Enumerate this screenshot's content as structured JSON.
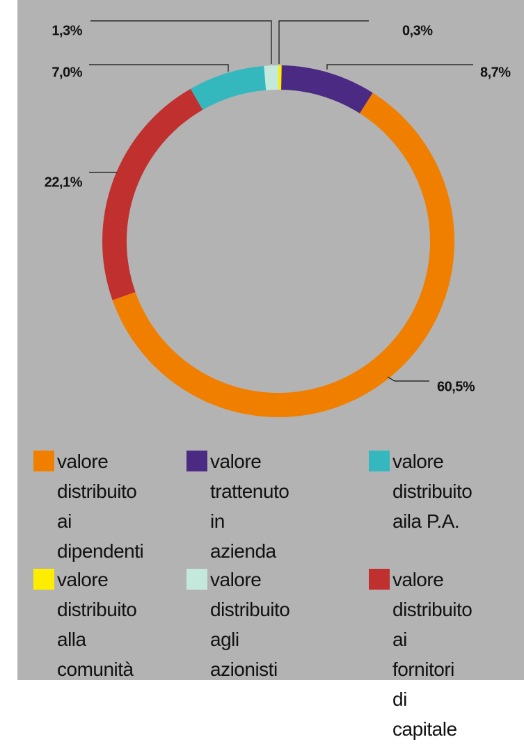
{
  "chart_data": {
    "type": "donut",
    "categories": [
      "valore\ndistribuito\nalla\ncomunità",
      "valore\ntrattenuto\nin azienda",
      "valore\ndistribuito\nai dipendenti",
      "valore\ndistribuito\nai fornitori\ndi capitale",
      "valore\ndistribuito\naila P.A.",
      "valore\ndistribuito\nagli\nazionisti"
    ],
    "values": [
      0.3,
      8.7,
      60.5,
      22.1,
      7.0,
      1.3
    ],
    "value_labels": [
      "0,3%",
      "8,7%",
      "60,5%",
      "22,1%",
      "7,0%",
      "1,3%"
    ],
    "colors": [
      "#ffed00",
      "#4a2a82",
      "#f07f00",
      "#c0302f",
      "#35b8bd",
      "#c5e8dc"
    ]
  }
}
